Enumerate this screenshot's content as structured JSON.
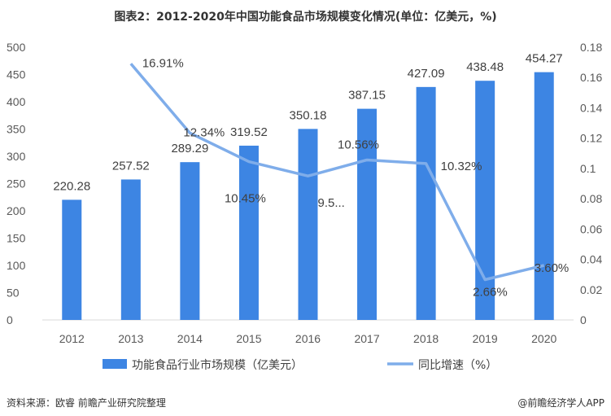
{
  "title": "图表2：2012-2020年中国功能食品市场规模变化情况(单位：亿美元，%)",
  "footer": {
    "source": "资料来源：欧睿 前瞻产业研究院整理",
    "brand": "@前瞻经济学人APP"
  },
  "colors": {
    "bar": "#3d85e3",
    "line": "#7fadea",
    "axis": "#d9d9d9"
  },
  "chart_data": {
    "type": "bar",
    "categories": [
      "2012",
      "2013",
      "2014",
      "2015",
      "2016",
      "2017",
      "2018",
      "2019",
      "2020"
    ],
    "series": [
      {
        "name": "功能食品行业市场规模（亿美元）",
        "type": "bar",
        "axis": "left",
        "values": [
          220.28,
          257.52,
          289.29,
          319.52,
          350.18,
          387.15,
          427.09,
          438.48,
          454.27
        ],
        "labels": [
          "220.28",
          "257.52",
          "289.29",
          "319.52",
          "350.18",
          "387.15",
          "427.09",
          "438.48",
          "454.27"
        ]
      },
      {
        "name": "同比增速（%）",
        "type": "line",
        "axis": "right",
        "values": [
          null,
          0.1691,
          0.1234,
          0.1045,
          0.095,
          0.1056,
          0.1032,
          0.0266,
          0.036
        ],
        "labels": [
          "",
          "16.91%",
          "12.34%",
          "10.45%",
          "9.5...",
          "10.56%",
          "10.32%",
          "2.66%",
          "3.60%"
        ]
      }
    ],
    "y_left": {
      "min": 0,
      "max": 500,
      "step": 50,
      "ticks": [
        "0",
        "50",
        "100",
        "150",
        "200",
        "250",
        "300",
        "350",
        "400",
        "450",
        "500"
      ]
    },
    "y_right": {
      "min": 0,
      "max": 0.18,
      "step": 0.02,
      "ticks": [
        "0",
        "0.02",
        "0.04",
        "0.06",
        "0.08",
        "0.1",
        "0.12",
        "0.14",
        "0.16",
        "0.18"
      ]
    },
    "legend": "bottom",
    "grid": false
  }
}
